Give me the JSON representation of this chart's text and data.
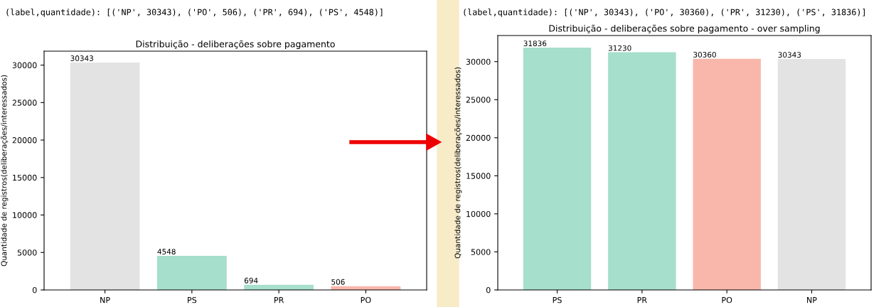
{
  "chart_data": [
    {
      "type": "bar",
      "title": "Distribuição - deliberações sobre pagamento",
      "ylabel": "Quantidade de registros(deliberações/interessados)",
      "annotations": [
        "(label,quantidade): [('NP', 30343), ('PO', 506), ('PR', 694), ('PS', 4548)]"
      ],
      "categories": [
        "NP",
        "PS",
        "PR",
        "PO"
      ],
      "values": [
        30343,
        4548,
        694,
        506
      ],
      "colors": [
        "#e3e3e3",
        "#a6dfcb",
        "#a6dfcb",
        "#f9b6ab"
      ],
      "ylim": [
        0,
        31860
      ],
      "yticks": [
        0,
        5000,
        10000,
        15000,
        20000,
        25000,
        30000
      ],
      "data_labels": true
    },
    {
      "type": "bar",
      "title": "Distribuição - deliberações sobre pagamento - over sampling",
      "ylabel": "Quantidade de registros(deliberações/interessados)",
      "annotations": [
        "(label,quantidade): [('NP', 30343), ('PO', 30360), ('PR', 31230), ('PS', 31836)]"
      ],
      "categories": [
        "PS",
        "PR",
        "PO",
        "NP"
      ],
      "values": [
        31836,
        31230,
        30360,
        30343
      ],
      "colors": [
        "#a6dfcb",
        "#a6dfcb",
        "#f9b6ab",
        "#e3e3e3"
      ],
      "ylim": [
        0,
        33428
      ],
      "yticks": [
        0,
        5000,
        10000,
        15000,
        20000,
        25000,
        30000
      ],
      "data_labels": true
    }
  ]
}
